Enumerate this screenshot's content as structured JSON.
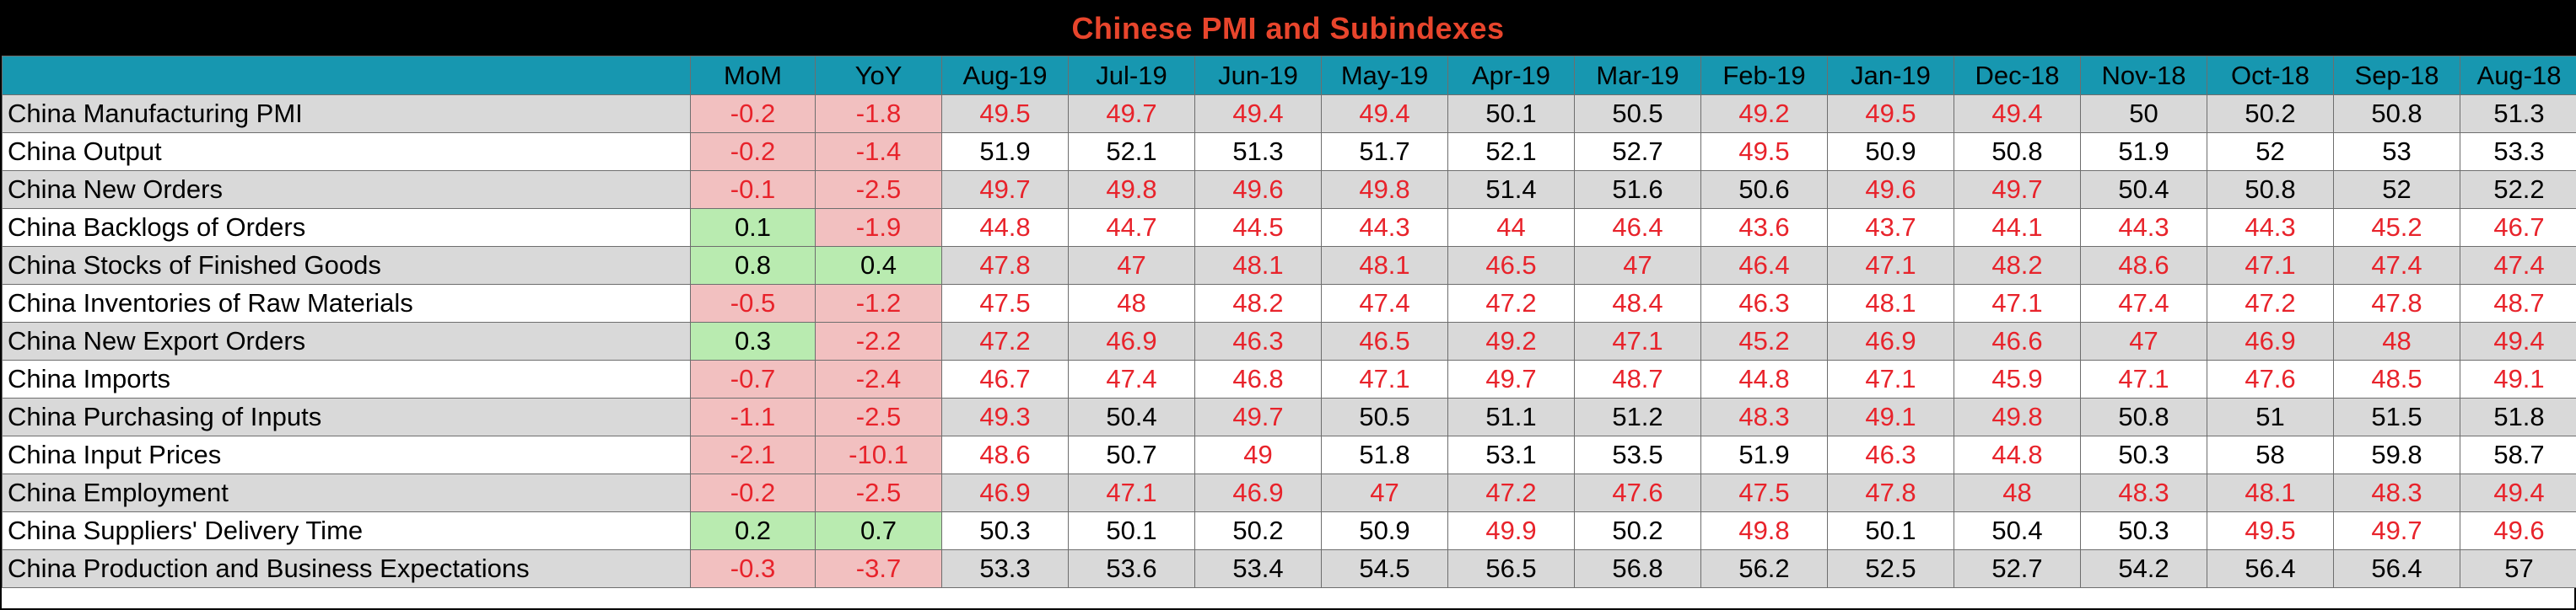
{
  "chart_data": {
    "type": "table",
    "title": "Chinese PMI and Subindexes",
    "columns": [
      "",
      "MoM",
      "YoY",
      "Aug-19",
      "Jul-19",
      "Jun-19",
      "May-19",
      "Apr-19",
      "Mar-19",
      "Feb-19",
      "Jan-19",
      "Dec-18",
      "Nov-18",
      "Oct-18",
      "Sep-18",
      "Aug-18"
    ],
    "rows": [
      {
        "label": "China Manufacturing PMI",
        "mom": "-0.2",
        "yoy": "-1.8",
        "values": [
          "49.5",
          "49.7",
          "49.4",
          "49.4",
          "50.1",
          "50.5",
          "49.2",
          "49.5",
          "49.4",
          "50",
          "50.2",
          "50.8",
          "51.3"
        ]
      },
      {
        "label": "China Output",
        "mom": "-0.2",
        "yoy": "-1.4",
        "values": [
          "51.9",
          "52.1",
          "51.3",
          "51.7",
          "52.1",
          "52.7",
          "49.5",
          "50.9",
          "50.8",
          "51.9",
          "52",
          "53",
          "53.3"
        ]
      },
      {
        "label": "China New Orders",
        "mom": "-0.1",
        "yoy": "-2.5",
        "values": [
          "49.7",
          "49.8",
          "49.6",
          "49.8",
          "51.4",
          "51.6",
          "50.6",
          "49.6",
          "49.7",
          "50.4",
          "50.8",
          "52",
          "52.2"
        ]
      },
      {
        "label": "China Backlogs of Orders",
        "mom": "0.1",
        "yoy": "-1.9",
        "values": [
          "44.8",
          "44.7",
          "44.5",
          "44.3",
          "44",
          "46.4",
          "43.6",
          "43.7",
          "44.1",
          "44.3",
          "44.3",
          "45.2",
          "46.7"
        ]
      },
      {
        "label": "China Stocks of Finished Goods",
        "mom": "0.8",
        "yoy": "0.4",
        "values": [
          "47.8",
          "47",
          "48.1",
          "48.1",
          "46.5",
          "47",
          "46.4",
          "47.1",
          "48.2",
          "48.6",
          "47.1",
          "47.4",
          "47.4"
        ]
      },
      {
        "label": "China Inventories of Raw Materials",
        "mom": "-0.5",
        "yoy": "-1.2",
        "values": [
          "47.5",
          "48",
          "48.2",
          "47.4",
          "47.2",
          "48.4",
          "46.3",
          "48.1",
          "47.1",
          "47.4",
          "47.2",
          "47.8",
          "48.7"
        ]
      },
      {
        "label": "China New Export Orders",
        "mom": "0.3",
        "yoy": "-2.2",
        "values": [
          "47.2",
          "46.9",
          "46.3",
          "46.5",
          "49.2",
          "47.1",
          "45.2",
          "46.9",
          "46.6",
          "47",
          "46.9",
          "48",
          "49.4"
        ]
      },
      {
        "label": "China Imports",
        "mom": "-0.7",
        "yoy": "-2.4",
        "values": [
          "46.7",
          "47.4",
          "46.8",
          "47.1",
          "49.7",
          "48.7",
          "44.8",
          "47.1",
          "45.9",
          "47.1",
          "47.6",
          "48.5",
          "49.1"
        ]
      },
      {
        "label": "China Purchasing of Inputs",
        "mom": "-1.1",
        "yoy": "-2.5",
        "values": [
          "49.3",
          "50.4",
          "49.7",
          "50.5",
          "51.1",
          "51.2",
          "48.3",
          "49.1",
          "49.8",
          "50.8",
          "51",
          "51.5",
          "51.8"
        ]
      },
      {
        "label": "China Input Prices",
        "mom": "-2.1",
        "yoy": "-10.1",
        "values": [
          "48.6",
          "50.7",
          "49",
          "51.8",
          "53.1",
          "53.5",
          "51.9",
          "46.3",
          "44.8",
          "50.3",
          "58",
          "59.8",
          "58.7"
        ]
      },
      {
        "label": "China Employment",
        "mom": "-0.2",
        "yoy": "-2.5",
        "values": [
          "46.9",
          "47.1",
          "46.9",
          "47",
          "47.2",
          "47.6",
          "47.5",
          "47.8",
          "48",
          "48.3",
          "48.1",
          "48.3",
          "49.4"
        ]
      },
      {
        "label": "China Suppliers' Delivery Time",
        "mom": "0.2",
        "yoy": "0.7",
        "values": [
          "50.3",
          "50.1",
          "50.2",
          "50.9",
          "49.9",
          "50.2",
          "49.8",
          "50.1",
          "50.4",
          "50.3",
          "49.5",
          "49.7",
          "49.6"
        ]
      },
      {
        "label": "China Production and Business Expectations",
        "mom": "-0.3",
        "yoy": "-3.7",
        "values": [
          "53.3",
          "53.6",
          "53.4",
          "54.5",
          "56.5",
          "56.8",
          "56.2",
          "52.5",
          "52.7",
          "54.2",
          "56.4",
          "56.4",
          "57"
        ]
      }
    ],
    "colors": {
      "title_text": "#e8452c",
      "title_bg": "#000000",
      "header_bg": "#1797b0",
      "above_50_text": "#000000",
      "below_50_text": "#e8232b",
      "negative_change_bg": "#f2c0c0",
      "positive_change_bg": "#b9ebb0",
      "stripe_bg": "#d9d9d9"
    }
  }
}
